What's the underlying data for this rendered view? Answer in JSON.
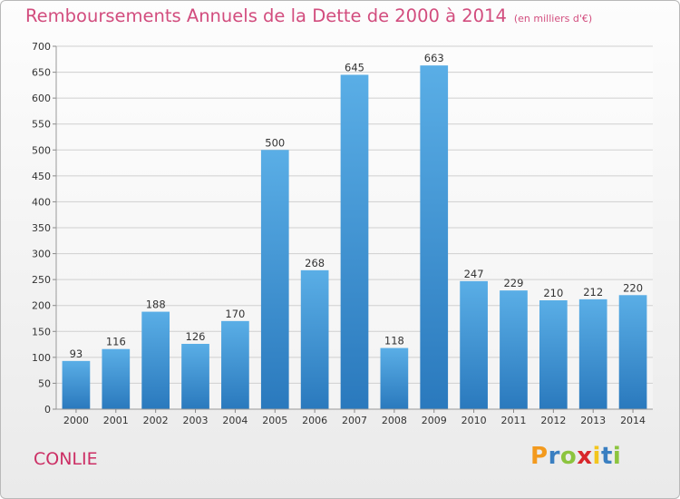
{
  "title": "Remboursements Annuels de la Dette de 2000 à 2014",
  "subtitle": "(en milliers d'€)",
  "commune": "CONLIE",
  "logo": {
    "letters": [
      "P",
      "r",
      "o",
      "x",
      "i",
      "t",
      "i"
    ],
    "colors": [
      "#f39a1e",
      "#3a7fc1",
      "#8cc43e",
      "#d8262b",
      "#f3c61e",
      "#3a7fc1",
      "#8cc43e"
    ]
  },
  "colors": {
    "bar_top": "#5aaee6",
    "bar_bottom": "#2a79bd",
    "title": "#d24d7e"
  },
  "chart_data": {
    "type": "bar",
    "title": "Remboursements Annuels de la Dette de 2000 à 2014",
    "subtitle": "(en milliers d'€)",
    "categories": [
      "2000",
      "2001",
      "2002",
      "2003",
      "2004",
      "2005",
      "2006",
      "2007",
      "2008",
      "2009",
      "2010",
      "2011",
      "2012",
      "2013",
      "2014"
    ],
    "values": [
      93,
      116,
      188,
      126,
      170,
      500,
      268,
      645,
      118,
      663,
      247,
      229,
      210,
      212,
      220
    ],
    "ylim": [
      0,
      700
    ],
    "yticks": [
      0,
      50,
      100,
      150,
      200,
      250,
      300,
      350,
      400,
      450,
      500,
      550,
      600,
      650,
      700
    ],
    "grid": true,
    "data_labels": true
  }
}
